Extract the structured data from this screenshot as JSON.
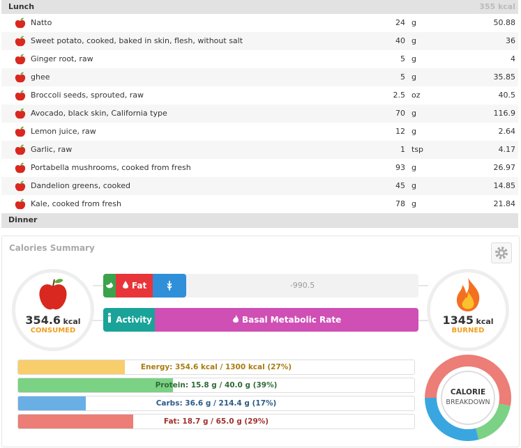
{
  "lunch": {
    "title": "Lunch",
    "total": "355 kcal",
    "items": [
      {
        "name": "Natto",
        "amount": 24,
        "unit": "g",
        "kcal": 50.88
      },
      {
        "name": "Sweet potato, cooked, baked in skin, flesh, without salt",
        "amount": 40,
        "unit": "g",
        "kcal": 36
      },
      {
        "name": "Ginger root, raw",
        "amount": 5,
        "unit": "g",
        "kcal": 4
      },
      {
        "name": "ghee",
        "amount": 5,
        "unit": "g",
        "kcal": 35.85
      },
      {
        "name": "Broccoli seeds, sprouted, raw",
        "amount": 2.5,
        "unit": "oz",
        "kcal": 40.5
      },
      {
        "name": "Avocado, black skin, California type",
        "amount": 70,
        "unit": "g",
        "kcal": 116.9
      },
      {
        "name": "Lemon juice, raw",
        "amount": 12,
        "unit": "g",
        "kcal": 2.64
      },
      {
        "name": "Garlic, raw",
        "amount": 1,
        "unit": "tsp",
        "kcal": 4.17
      },
      {
        "name": "Portabella mushrooms, cooked from fresh",
        "amount": 93,
        "unit": "g",
        "kcal": 26.97
      },
      {
        "name": "Dandelion greens, cooked",
        "amount": 45,
        "unit": "g",
        "kcal": 14.85
      },
      {
        "name": "Kale, cooked from fresh",
        "amount": 78,
        "unit": "g",
        "kcal": 21.84
      }
    ]
  },
  "dinner": {
    "title": "Dinner"
  },
  "summary": {
    "title": "Calories Summary",
    "consumed": {
      "value": 354.6,
      "unit": "kcal",
      "label": "CONSUMED"
    },
    "burned": {
      "value": 1345,
      "unit": "kcal",
      "label": "BURNED"
    },
    "fat_button": "Fat",
    "balance": -990.5,
    "activity": "Activity",
    "bmr": "Basal Metabolic Rate",
    "targets": [
      {
        "label": "Energy: 354.6 kcal / 1300 kcal (27%)",
        "percent": 27,
        "color": "#f8cd6c",
        "text_color": "#a87c10"
      },
      {
        "label": "Protein: 15.8 g / 40.0 g (39%)",
        "percent": 39,
        "color": "#7bd184",
        "text_color": "#2f6a36"
      },
      {
        "label": "Carbs: 36.6 g / 214.4 g (17%)",
        "percent": 17,
        "color": "#6aaee6",
        "text_color": "#2b5a86"
      },
      {
        "label": "Fat: 18.7 g / 65.0 g (29%)",
        "percent": 29,
        "color": "#ec7d77",
        "text_color": "#a2302b"
      }
    ],
    "breakdown": {
      "line1": "CALORIE",
      "line2": "BREAKDOWN",
      "segments": [
        {
          "value": 53,
          "color": "#ec7d77"
        },
        {
          "value": 18,
          "color": "#7bd184"
        },
        {
          "value": 29,
          "color": "#3aa6e0"
        }
      ]
    }
  }
}
